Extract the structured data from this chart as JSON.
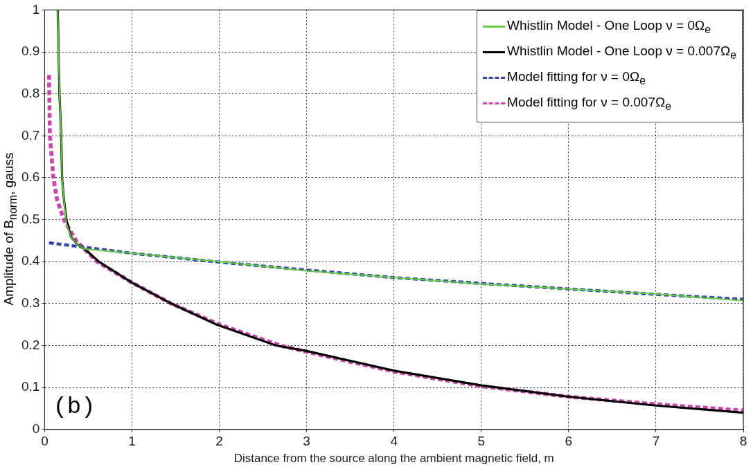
{
  "chart_data": {
    "type": "line",
    "xlabel": "Distance from the source along the ambient magnetic field, m",
    "ylabel": "Amplitude of B$_{norm}$, gauss",
    "xlim": [
      0,
      8
    ],
    "xticks": [
      0,
      1,
      2,
      3,
      4,
      5,
      6,
      7,
      8
    ],
    "ylim": [
      0,
      1
    ],
    "yticks": [
      0,
      0.1,
      0.2,
      0.3,
      0.4,
      0.5,
      0.6,
      0.7,
      0.8,
      0.9,
      1
    ],
    "grid": true,
    "legend": "top right",
    "marker": "none",
    "annotations": [
      "(b)"
    ],
    "series": [
      {
        "name": "Whistlin Model - One Loop ν = 0Ω$_{e}$",
        "color": "#66cc44",
        "line_style": "solid",
        "x": [
          0.15,
          0.16,
          0.17,
          0.19,
          0.2,
          0.22,
          0.25,
          0.3,
          0.38,
          0.46,
          1,
          2,
          3,
          4,
          5,
          6,
          7,
          8
        ],
        "values": [
          1,
          0.9,
          0.8,
          0.7,
          0.6,
          0.55,
          0.49,
          0.46,
          0.44,
          0.43,
          0.42,
          0.4,
          0.378,
          0.362,
          0.347,
          0.335,
          0.323,
          0.307
        ]
      },
      {
        "name": "Whistlin Model - One Loop ν = 0.007Ω$_{e}$",
        "color": "#000000",
        "line_style": "solid",
        "x": [
          0.15,
          0.16,
          0.17,
          0.19,
          0.2,
          0.22,
          0.25,
          0.3,
          0.38,
          0.46,
          0.62,
          1,
          1.45,
          1.97,
          2.65,
          3,
          4,
          5,
          6,
          7,
          8
        ],
        "values": [
          1,
          0.9,
          0.8,
          0.7,
          0.6,
          0.55,
          0.5,
          0.46,
          0.44,
          0.43,
          0.4,
          0.35,
          0.3,
          0.25,
          0.2,
          0.187,
          0.14,
          0.105,
          0.078,
          0.057,
          0.04
        ]
      },
      {
        "name": "Model fitting for ν = 0Ω$_{e}$",
        "color": "#3344aa",
        "line_style": "dashed",
        "x": [
          0.05,
          1,
          2,
          3,
          4,
          5,
          6,
          7,
          8
        ],
        "values": [
          0.445,
          0.42,
          0.399,
          0.38,
          0.362,
          0.348,
          0.335,
          0.322,
          0.31
        ]
      },
      {
        "name": "Model fitting for ν = 0.007Ω$_{e}$",
        "color": "#cc44aa",
        "line_style": "dashed",
        "x": [
          0.05,
          0.06,
          0.1,
          0.14,
          0.22,
          0.36,
          0.6,
          1,
          1.45,
          2,
          2.7,
          3,
          4,
          5,
          6,
          7,
          8
        ],
        "values": [
          0.845,
          0.7,
          0.6,
          0.55,
          0.5,
          0.45,
          0.4,
          0.35,
          0.3,
          0.25,
          0.2,
          0.185,
          0.138,
          0.103,
          0.078,
          0.06,
          0.045
        ]
      }
    ]
  }
}
